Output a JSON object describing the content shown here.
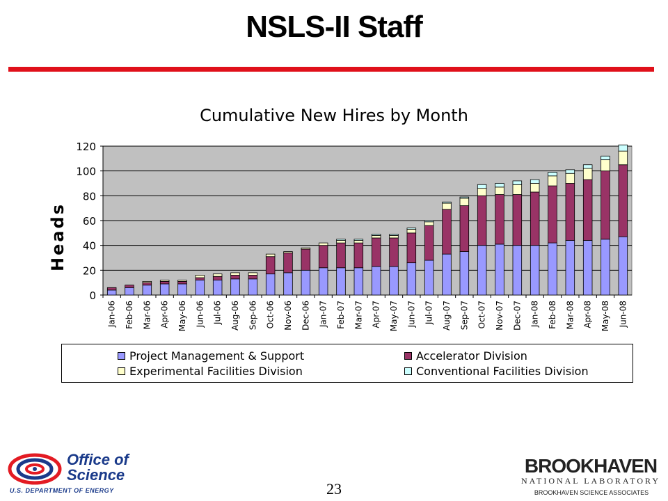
{
  "slide": {
    "title": "NSLS-II Staff",
    "rule_color": "#e0101a",
    "page_number": "23"
  },
  "footer": {
    "office_line1": "Office of",
    "office_line2": "Science",
    "doe": "U.S. DEPARTMENT OF ENERGY",
    "bnl_name": "BROOKHAVEN",
    "bnl_sub": "NATIONAL LABORATORY",
    "bnl_assoc": "BROOKHAVEN SCIENCE ASSOCIATES"
  },
  "chart_data": {
    "type": "bar",
    "stacked": true,
    "title": "Cumulative New Hires by Month",
    "xlabel": "",
    "ylabel": "Heads",
    "ylim": [
      0,
      120
    ],
    "yticks": [
      0,
      20,
      40,
      60,
      80,
      100,
      120
    ],
    "grid": true,
    "plot_background": "#c0c0c0",
    "legend_position": "bottom",
    "categories": [
      "Jan-06",
      "Feb-06",
      "Mar-06",
      "Apr-06",
      "May-06",
      "Jun-06",
      "Jul-06",
      "Aug-06",
      "Sep-06",
      "Oct-06",
      "Nov-06",
      "Dec-06",
      "Jan-07",
      "Feb-07",
      "Mar-07",
      "Apr-07",
      "May-07",
      "Jun-07",
      "Jul-07",
      "Aug-07",
      "Sep-07",
      "Oct-07",
      "Nov-07",
      "Dec-07",
      "Jan-08",
      "Feb-08",
      "Mar-08",
      "Apr-08",
      "May-08",
      "Jun-08"
    ],
    "series": [
      {
        "name": "Project Management & Support",
        "color": "#9999ff",
        "values": [
          4,
          6,
          8,
          9,
          9,
          12,
          12,
          13,
          13,
          17,
          18,
          20,
          22,
          22,
          22,
          23,
          23,
          26,
          28,
          33,
          35,
          40,
          41,
          40,
          40,
          42,
          44,
          44,
          45,
          47
        ]
      },
      {
        "name": "Accelerator Division",
        "color": "#993366",
        "values": [
          2,
          2,
          2,
          2,
          2,
          2,
          3,
          3,
          3,
          14,
          16,
          17,
          18,
          20,
          20,
          23,
          23,
          24,
          28,
          36,
          37,
          40,
          40,
          41,
          43,
          46,
          46,
          49,
          55,
          58
        ]
      },
      {
        "name": "Experimental Facilities Division",
        "color": "#ffffcc",
        "values": [
          0,
          0,
          1,
          1,
          1,
          2,
          2,
          2,
          2,
          2,
          1,
          1,
          2,
          2,
          2,
          2,
          2,
          3,
          3,
          5,
          6,
          6,
          6,
          8,
          7,
          8,
          8,
          9,
          9,
          11
        ]
      },
      {
        "name": "Conventional Facilities Division",
        "color": "#ccffff",
        "values": [
          0,
          0,
          0,
          0,
          0,
          0,
          0,
          0,
          0,
          0,
          0,
          0,
          0,
          1,
          1,
          1,
          1,
          1,
          1,
          1,
          1,
          3,
          3,
          3,
          3,
          3,
          3,
          3,
          3,
          5
        ]
      }
    ]
  }
}
